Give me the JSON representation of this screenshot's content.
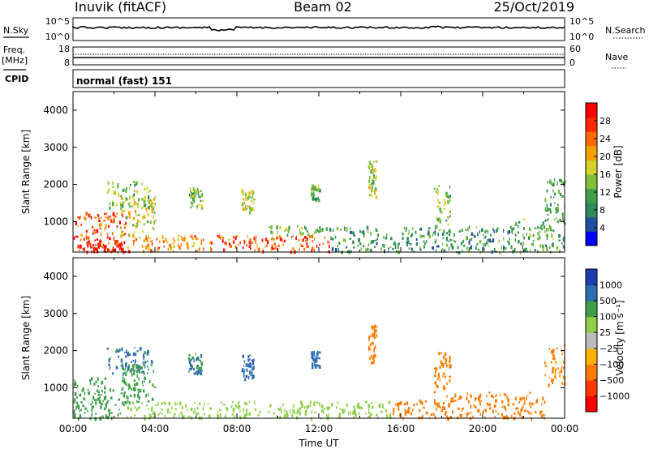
{
  "header": {
    "station": "Inuvik (fitACF)",
    "beam": "Beam 02",
    "date": "25/Oct/2019"
  },
  "status_panels": {
    "nsky_label": "N.Sky",
    "nsky_ticks": [
      "10^5",
      "10^0"
    ],
    "nsearch_label": "N.Search",
    "nsearch_ticks": [
      "10^5",
      "10^0"
    ],
    "freq_label": "Freq.",
    "freq_unit": "[MHz]",
    "freq_ticks": [
      "18",
      "8"
    ],
    "nave_label": "Nave",
    "nave_ticks": [
      "60",
      "0"
    ],
    "cpid_label": "CPID",
    "cpid_value": "normal (fast) 151"
  },
  "chart_data": [
    {
      "type": "heatmap",
      "name": "power-panel",
      "ylabel": "Slant Range [km]",
      "ylim": [
        180,
        4500
      ],
      "yticks": [
        1000,
        2000,
        3000,
        4000
      ],
      "xlim": [
        "00:00",
        "24:00"
      ],
      "colorbar": {
        "label": "Power [dB]",
        "ticks": [
          "28",
          "24",
          "20",
          "16",
          "12",
          "8",
          "4"
        ],
        "colors": [
          "#0000ff",
          "#1f4fa0",
          "#2f8a5a",
          "#3f9f47",
          "#7fbf3a",
          "#d7d22a",
          "#f5a000",
          "#ff6a00",
          "#ff2800",
          "#ff0000"
        ]
      },
      "regions": [
        {
          "t0": 0.1,
          "t1": 2.6,
          "r0": 200,
          "r1": 1300,
          "v": 26
        },
        {
          "t0": 0.0,
          "t1": 2.6,
          "r0": 200,
          "r1": 650,
          "v": 30
        },
        {
          "t0": 2.3,
          "t1": 4.0,
          "r0": 600,
          "r1": 1700,
          "v": 17
        },
        {
          "t0": 1.6,
          "t1": 3.8,
          "r0": 1400,
          "r1": 2100,
          "v": 14
        },
        {
          "t0": 2.6,
          "t1": 6.8,
          "r0": 200,
          "r1": 650,
          "v": 22
        },
        {
          "t0": 5.6,
          "t1": 6.3,
          "r0": 1400,
          "r1": 1950,
          "v": 13
        },
        {
          "t0": 7.0,
          "t1": 12.5,
          "r0": 200,
          "r1": 650,
          "v": 26
        },
        {
          "t0": 8.2,
          "t1": 8.8,
          "r0": 1250,
          "r1": 1900,
          "v": 17
        },
        {
          "t0": 9.5,
          "t1": 12.5,
          "r0": 650,
          "r1": 900,
          "v": 12
        },
        {
          "t0": 11.6,
          "t1": 12.0,
          "r0": 1600,
          "r1": 2000,
          "v": 12
        },
        {
          "t0": 12.5,
          "t1": 21.5,
          "r0": 200,
          "r1": 900,
          "v": 10
        },
        {
          "t0": 14.4,
          "t1": 14.8,
          "r0": 1700,
          "r1": 2700,
          "v": 16
        },
        {
          "t0": 17.6,
          "t1": 18.4,
          "r0": 900,
          "r1": 2000,
          "v": 14
        },
        {
          "t0": 21.5,
          "t1": 24.0,
          "r0": 200,
          "r1": 1100,
          "v": 12
        },
        {
          "t0": 23.0,
          "t1": 24.0,
          "r0": 1100,
          "r1": 2200,
          "v": 11
        }
      ]
    },
    {
      "type": "heatmap",
      "name": "velocity-panel",
      "ylabel": "Slant Range [km]",
      "ylim": [
        180,
        4500
      ],
      "yticks": [
        1000,
        2000,
        3000,
        4000
      ],
      "xlim": [
        "00:00",
        "24:00"
      ],
      "xticks": [
        "00:00",
        "04:00",
        "08:00",
        "12:00",
        "16:00",
        "20:00",
        "00:00"
      ],
      "xlabel": "Time UT",
      "colorbar": {
        "label": "Velocity [m s⁻¹]",
        "ticks": [
          "1000",
          "500",
          "100",
          "25",
          "−25",
          "−100",
          "−500",
          "−1000"
        ],
        "colors": [
          "#ff0000",
          "#ff3a00",
          "#ff7a00",
          "#ffb000",
          "#bbbbbb",
          "#8fcf4a",
          "#3f9f47",
          "#2f6fb0",
          "#1f3fb0"
        ]
      },
      "regions": [
        {
          "t0": 0.0,
          "t1": 2.6,
          "r0": 200,
          "r1": 1300,
          "v": 150
        },
        {
          "t0": 2.3,
          "t1": 4.0,
          "r0": 600,
          "r1": 1700,
          "v": 300
        },
        {
          "t0": 1.6,
          "t1": 3.8,
          "r0": 1400,
          "r1": 2100,
          "v": 600
        },
        {
          "t0": 2.6,
          "t1": 6.8,
          "r0": 200,
          "r1": 650,
          "v": 80
        },
        {
          "t0": 5.6,
          "t1": 6.3,
          "r0": 1400,
          "r1": 1950,
          "v": 500
        },
        {
          "t0": 7.0,
          "t1": 12.5,
          "r0": 200,
          "r1": 650,
          "v": 60
        },
        {
          "t0": 8.2,
          "t1": 8.8,
          "r0": 1250,
          "r1": 1900,
          "v": 900
        },
        {
          "t0": 11.6,
          "t1": 12.0,
          "r0": 1600,
          "r1": 2000,
          "v": 800
        },
        {
          "t0": 12.5,
          "t1": 15.5,
          "r0": 200,
          "r1": 650,
          "v": 40
        },
        {
          "t0": 14.4,
          "t1": 14.8,
          "r0": 1700,
          "r1": 2700,
          "v": -300
        },
        {
          "t0": 15.5,
          "t1": 18.0,
          "r0": 200,
          "r1": 700,
          "v": -150
        },
        {
          "t0": 17.6,
          "t1": 18.4,
          "r0": 900,
          "r1": 2000,
          "v": -400
        },
        {
          "t0": 18.0,
          "t1": 23.0,
          "r0": 200,
          "r1": 900,
          "v": -250
        },
        {
          "t0": 23.0,
          "t1": 24.0,
          "r0": 1100,
          "r1": 2200,
          "v": -120
        }
      ]
    }
  ]
}
